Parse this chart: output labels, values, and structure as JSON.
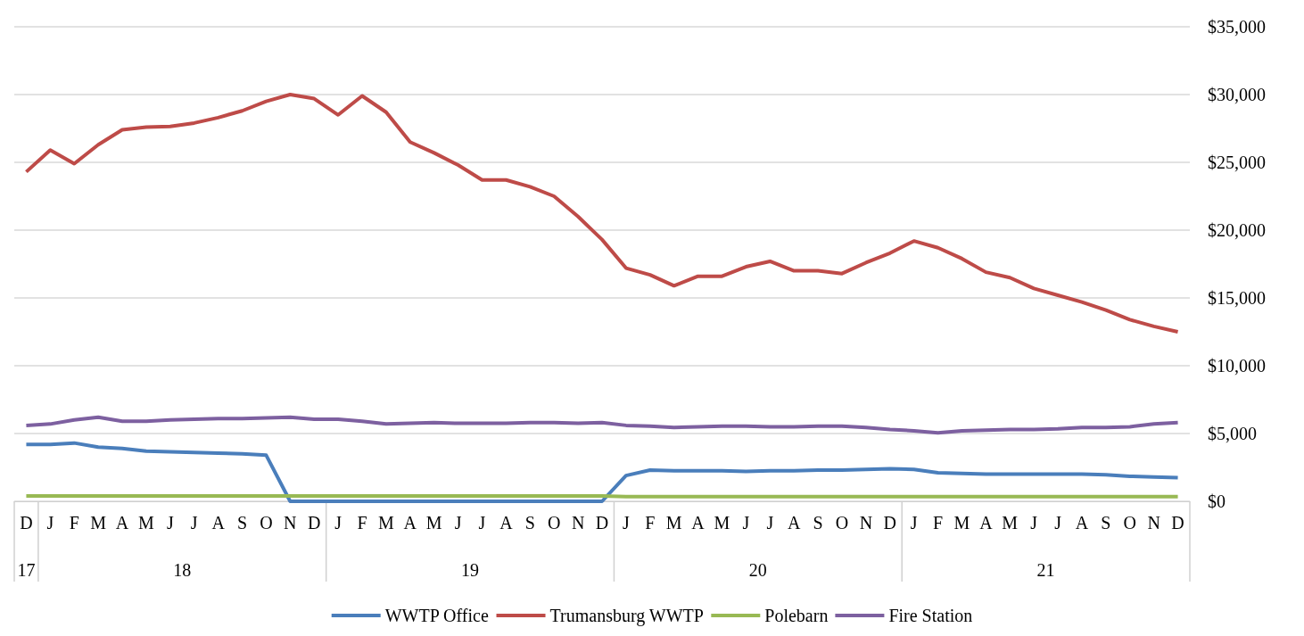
{
  "chart_data": {
    "type": "line",
    "categories": [
      "D",
      "J",
      "F",
      "M",
      "A",
      "M",
      "J",
      "J",
      "A",
      "S",
      "O",
      "N",
      "D",
      "J",
      "F",
      "M",
      "A",
      "M",
      "J",
      "J",
      "A",
      "S",
      "O",
      "N",
      "D",
      "J",
      "F",
      "M",
      "A",
      "M",
      "J",
      "J",
      "A",
      "S",
      "O",
      "N",
      "D",
      "J",
      "F",
      "M",
      "A",
      "M",
      "J",
      "J",
      "A",
      "S",
      "O",
      "N",
      "D"
    ],
    "annotations": [
      "17",
      "18",
      "19",
      "20",
      "21"
    ],
    "series": [
      {
        "name": "WWTP Office",
        "color": "#4a7ebb",
        "values": [
          4200,
          4200,
          4300,
          4000,
          3900,
          3700,
          3650,
          3600,
          3550,
          3500,
          3400,
          0,
          0,
          0,
          0,
          0,
          0,
          0,
          0,
          0,
          0,
          0,
          0,
          0,
          0,
          1900,
          2300,
          2250,
          2250,
          2250,
          2200,
          2250,
          2250,
          2300,
          2300,
          2350,
          2400,
          2350,
          2100,
          2050,
          2000,
          2000,
          2000,
          2000,
          2000,
          1950,
          1850,
          1800,
          1750
        ]
      },
      {
        "name": "Trumansburg WWTP",
        "color": "#be4b48",
        "values": [
          24300,
          25900,
          24900,
          26300,
          27400,
          27600,
          27650,
          27900,
          28300,
          28800,
          29500,
          30000,
          29700,
          28500,
          29900,
          28700,
          26500,
          25700,
          24800,
          23700,
          23700,
          23200,
          22500,
          21000,
          19300,
          17200,
          16700,
          15900,
          16600,
          16600,
          17300,
          17700,
          17000,
          17000,
          16800,
          17600,
          18300,
          19200,
          18700,
          17900,
          16900,
          16500,
          15700,
          15200,
          14700,
          14100,
          13400,
          12900,
          12500
        ]
      },
      {
        "name": "Polebarn",
        "color": "#98b954",
        "values": [
          400,
          400,
          400,
          400,
          400,
          400,
          400,
          400,
          400,
          400,
          400,
          400,
          400,
          400,
          400,
          400,
          400,
          400,
          400,
          400,
          400,
          400,
          400,
          400,
          400,
          350,
          350,
          350,
          350,
          350,
          350,
          350,
          350,
          350,
          350,
          350,
          350,
          350,
          350,
          350,
          350,
          350,
          350,
          350,
          350,
          350,
          350,
          350,
          350
        ]
      },
      {
        "name": "Fire Station",
        "color": "#7d60a0",
        "values": [
          5600,
          5700,
          6000,
          6200,
          5900,
          5900,
          6000,
          6050,
          6100,
          6100,
          6150,
          6200,
          6050,
          6050,
          5900,
          5700,
          5750,
          5800,
          5750,
          5750,
          5750,
          5800,
          5800,
          5750,
          5800,
          5600,
          5550,
          5450,
          5500,
          5550,
          5550,
          5500,
          5500,
          5550,
          5550,
          5450,
          5300,
          5200,
          5050,
          5200,
          5250,
          5300,
          5300,
          5350,
          5450,
          5450,
          5500,
          5700,
          5800
        ]
      }
    ],
    "ylim": [
      0,
      35000
    ],
    "yticks": [
      {
        "value": 0,
        "label": "$0"
      },
      {
        "value": 5000,
        "label": "$5,000"
      },
      {
        "value": 10000,
        "label": "$10,000"
      },
      {
        "value": 15000,
        "label": "$15,000"
      },
      {
        "value": 20000,
        "label": "$20,000"
      },
      {
        "value": 25000,
        "label": "$25,000"
      },
      {
        "value": 30000,
        "label": "$30,000"
      },
      {
        "value": 35000,
        "label": "$35,000"
      }
    ],
    "grid": "y",
    "legend": "bottom",
    "marker": "none",
    "line_style": "solid"
  }
}
